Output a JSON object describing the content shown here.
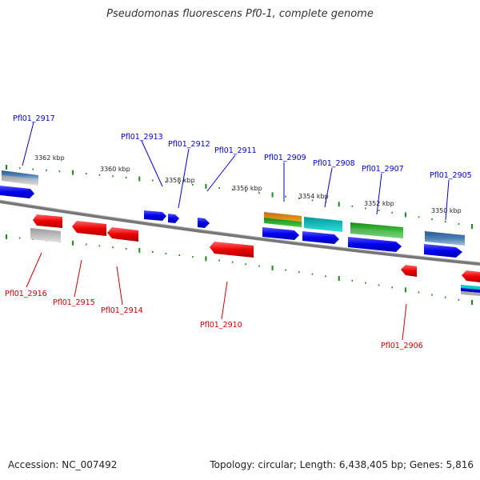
{
  "title": "Pseudomonas fluorescens Pf0-1, complete genome",
  "footer": {
    "accession": "Accession: NC_007492",
    "topology": "Topology: circular; Length: 6,438,405 bp; Genes: 5,816"
  },
  "colors": {
    "forward_gene": "#0000ee",
    "reverse_gene": "#ee0000",
    "backbone": "#888888",
    "tick": "#1a8a1a",
    "label_forward": "#0000cc",
    "label_reverse": "#cc0000"
  },
  "scale_labels": [
    "3362 kbp",
    "3360 kbp",
    "3358 kbp",
    "3356 kbp",
    "3354 kbp",
    "3352 kbp",
    "3350 kbp"
  ],
  "genes_top": [
    "Pfl01_2917",
    "Pfl01_2913",
    "Pfl01_2912",
    "Pfl01_2911",
    "Pfl01_2909",
    "Pfl01_2908",
    "Pfl01_2907",
    "Pfl01_2905"
  ],
  "genes_bottom": [
    "Pfl01_2916",
    "Pfl01_2915",
    "Pfl01_2914",
    "Pfl01_2910",
    "Pfl01_2906"
  ]
}
